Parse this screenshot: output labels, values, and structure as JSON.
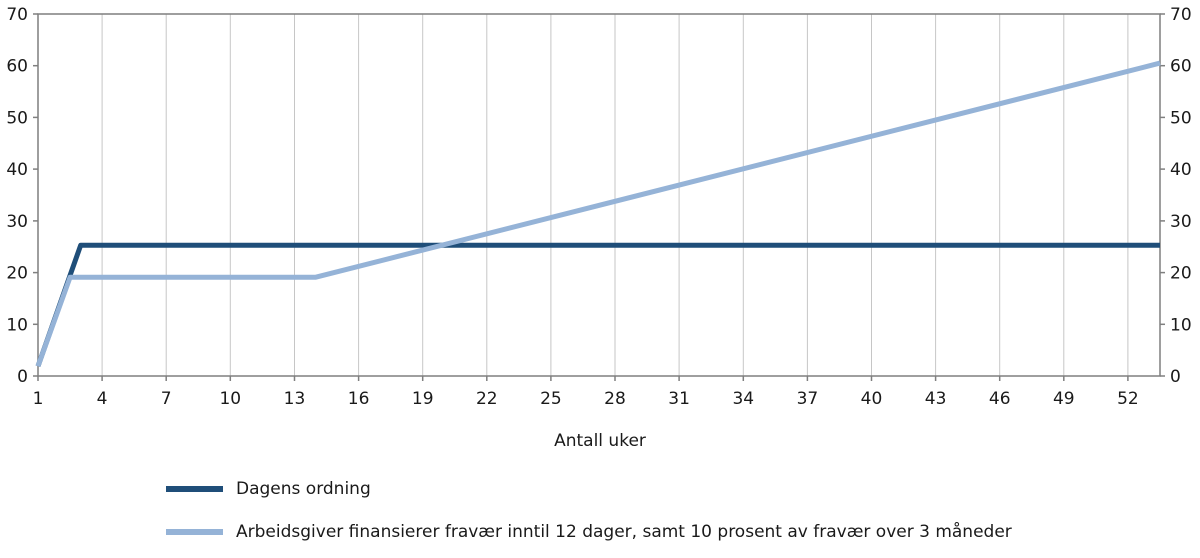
{
  "chart_data": {
    "type": "line",
    "title": "",
    "xlabel": "Antall uker",
    "ylabel": "",
    "xlim": [
      1,
      53.5
    ],
    "ylim": [
      0,
      70
    ],
    "x_ticks": [
      1,
      4,
      7,
      10,
      13,
      16,
      19,
      22,
      25,
      28,
      31,
      34,
      37,
      40,
      43,
      46,
      49,
      52
    ],
    "y_ticks": [
      0,
      10,
      20,
      30,
      40,
      50,
      60,
      70
    ],
    "y_axis_sides": [
      "left",
      "right"
    ],
    "grid": "vertical",
    "gridline_color": "#c6c6c6",
    "border_color": "#7f7f7f",
    "legend_position": "bottom-left",
    "series": [
      {
        "name": "Dagens ordning",
        "color": "#1F4E79",
        "width": 5,
        "points": [
          [
            1,
            1.9
          ],
          [
            3,
            25.3
          ],
          [
            53.5,
            25.3
          ]
        ]
      },
      {
        "name": "Arbeidsgiver finansierer fravær inntil 12 dager, samt 10 prosent av fravær over 3 måneder",
        "color": "#95B3D7",
        "width": 5,
        "points": [
          [
            1,
            1.9
          ],
          [
            2.5,
            19.1
          ],
          [
            14,
            19.1
          ],
          [
            53.5,
            60.5
          ]
        ]
      }
    ]
  }
}
